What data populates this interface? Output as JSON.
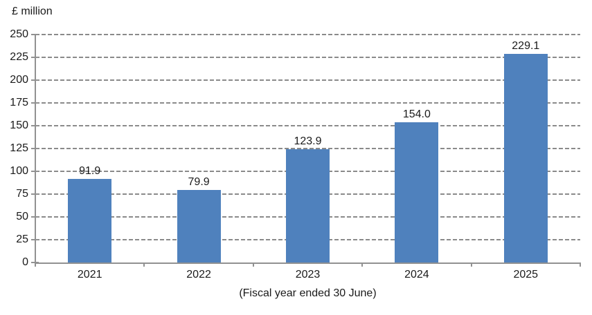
{
  "chart_data": {
    "type": "bar",
    "title": "",
    "y_unit_label": "£ million",
    "xlabel": "(Fiscal year ended 30 June)",
    "ylabel": "£ million",
    "categories": [
      "2021",
      "2022",
      "2023",
      "2024",
      "2025"
    ],
    "values": [
      91.9,
      79.9,
      123.9,
      154.0,
      229.1
    ],
    "value_labels": [
      "91.9",
      "79.9",
      "123.9",
      "154.0",
      "229.1"
    ],
    "ylim": [
      0,
      250
    ],
    "ytick_step": 25,
    "ytick_labels": [
      "0",
      "25",
      "50",
      "75",
      "100",
      "125",
      "150",
      "175",
      "200",
      "225",
      "250"
    ],
    "grid": "dashed-horizontal",
    "legend": "none",
    "colors": {
      "bar": "#4F81BD",
      "gridline": "#8A8A8A",
      "axis": "#919191",
      "text": "#1a1a1a"
    }
  }
}
